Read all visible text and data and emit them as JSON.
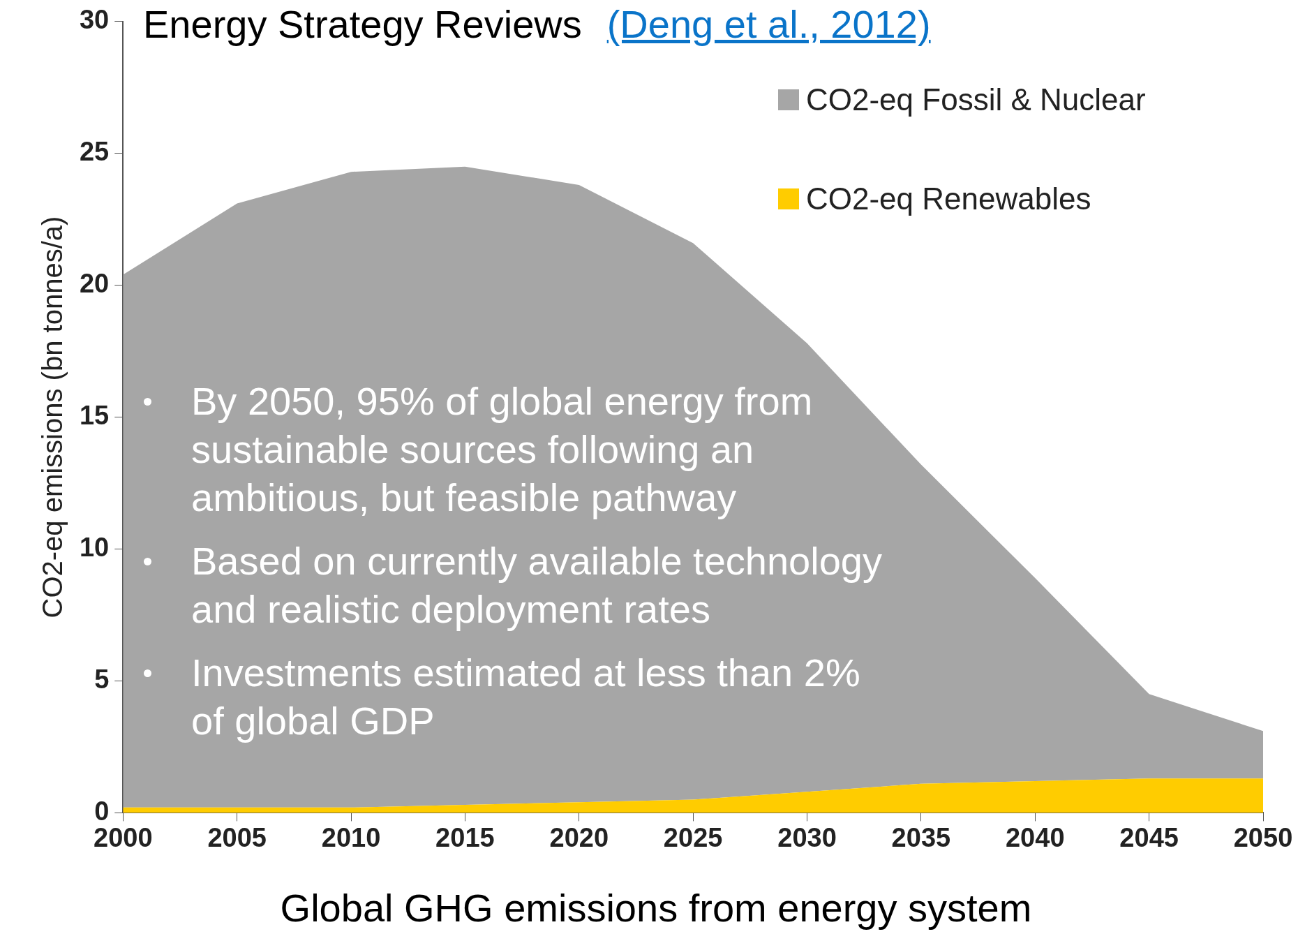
{
  "chart_data": {
    "type": "area",
    "title": "Energy Strategy Reviews",
    "subtitle": "(Deng et al., 2012)",
    "xlabel": "Global GHG emissions from energy system",
    "ylabel": "CO2-eq emissions (bn tonnes/a)",
    "x": [
      2000,
      2005,
      2010,
      2015,
      2020,
      2025,
      2030,
      2035,
      2040,
      2045,
      2050
    ],
    "stacked": true,
    "series": [
      {
        "name": "CO2-eq Renewables",
        "color": "#ffcc00",
        "values": [
          0.2,
          0.2,
          0.2,
          0.3,
          0.4,
          0.5,
          0.8,
          1.1,
          1.2,
          1.3,
          1.3
        ]
      },
      {
        "name": "CO2-eq Fossil & Nuclear",
        "color": "#a6a6a6",
        "values": [
          20.2,
          22.9,
          24.1,
          24.2,
          23.4,
          21.1,
          17.0,
          12.1,
          7.7,
          3.2,
          1.8
        ]
      }
    ],
    "xlim": [
      2000,
      2050
    ],
    "xticks": [
      2000,
      2005,
      2010,
      2015,
      2020,
      2025,
      2030,
      2035,
      2040,
      2045,
      2050
    ],
    "ylim": [
      0,
      30
    ],
    "yticks": [
      0,
      5,
      10,
      15,
      20,
      25,
      30
    ],
    "legend": "top right",
    "grid": false,
    "annotations": [
      "By 2050, 95% of global energy from sustainable sources following an ambitious, but feasible pathway",
      "Based on currently available technology and realistic deployment rates",
      "Investments estimated at less than 2% of global GDP"
    ]
  }
}
